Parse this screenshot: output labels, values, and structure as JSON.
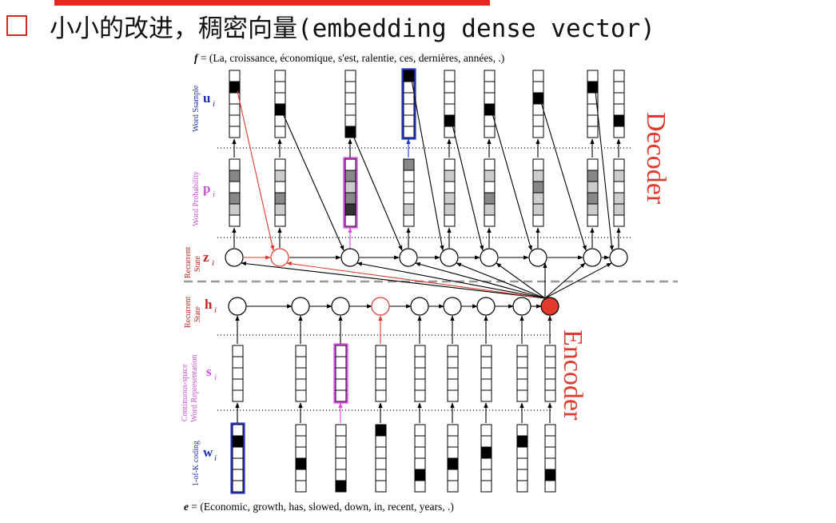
{
  "title": "小小的改进，稠密向量(embedding dense vector)",
  "sentences": {
    "f_prefix": "f",
    "f_text": " = (La, croissance, économique, s'est, ralentie, ces, dernières, années, .)",
    "e_prefix": "e",
    "e_text": " = (Economic, growth, has, slowed, down, in, recent, years, .)"
  },
  "rows": {
    "u": {
      "var": "u",
      "sub": "i",
      "label": "Word Ssample",
      "color": "#1f2fb5"
    },
    "p": {
      "var": "p",
      "sub": "i",
      "label": "Word Probability",
      "color": "#d24fd8"
    },
    "z": {
      "var": "z",
      "sub": "i",
      "label1": "Recurrent",
      "label2": "State",
      "color": "#c3261d"
    },
    "h": {
      "var": "h",
      "sub": "i",
      "label1": "Recurrent",
      "label2": "State",
      "color": "#c3261d"
    },
    "s": {
      "var": "s",
      "sub": "i",
      "label1": "Continuous-space",
      "label2": "Word Representation",
      "color": "#d24fd8"
    },
    "w": {
      "var": "w",
      "sub": "i",
      "label": "1-of-K coding",
      "color": "#1f2fb5"
    }
  },
  "big_labels": {
    "decoder": "Decoder",
    "encoder": "Encoder"
  },
  "colors": {
    "accent_red": "#e03a2e",
    "blue": "#2633c6",
    "magenta": "#d84ce0",
    "grid": "#000000"
  }
}
